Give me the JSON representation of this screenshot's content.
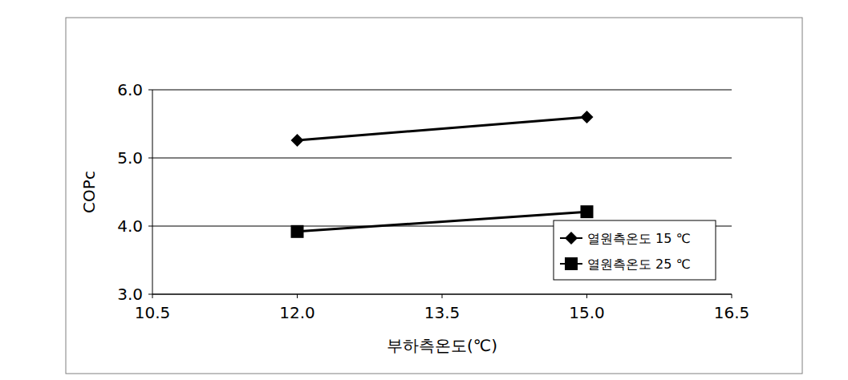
{
  "chart_data": {
    "type": "line",
    "x_label": "부하측온도(℃)",
    "y_label": "COPc",
    "x": [
      12.0,
      15.0
    ],
    "series": [
      {
        "name": "열원측온도 15 ℃",
        "color": "#000000",
        "marker": "diamond",
        "line_style": "solid",
        "values": [
          5.26,
          5.6
        ]
      },
      {
        "name": "열원측온도 25 ℃",
        "color": "#000000",
        "marker": "square",
        "line_style": "solid",
        "values": [
          3.92,
          4.21
        ]
      }
    ],
    "xlim": [
      10.5,
      16.5
    ],
    "xticks": [
      {
        "value": 10.5,
        "label": "10.5"
      },
      {
        "value": 12.0,
        "label": "12.0"
      },
      {
        "value": 13.5,
        "label": "13.5"
      },
      {
        "value": 15.0,
        "label": "15.0"
      },
      {
        "value": 16.5,
        "label": "16.5"
      }
    ],
    "ylim": [
      3.0,
      6.0
    ],
    "yticks": [
      {
        "value": 3.0,
        "label": "3.0"
      },
      {
        "value": 4.0,
        "label": "4.0"
      },
      {
        "value": 5.0,
        "label": "5.0"
      },
      {
        "value": 6.0,
        "label": "6.0"
      }
    ],
    "grid": true,
    "legend": "lower right"
  }
}
